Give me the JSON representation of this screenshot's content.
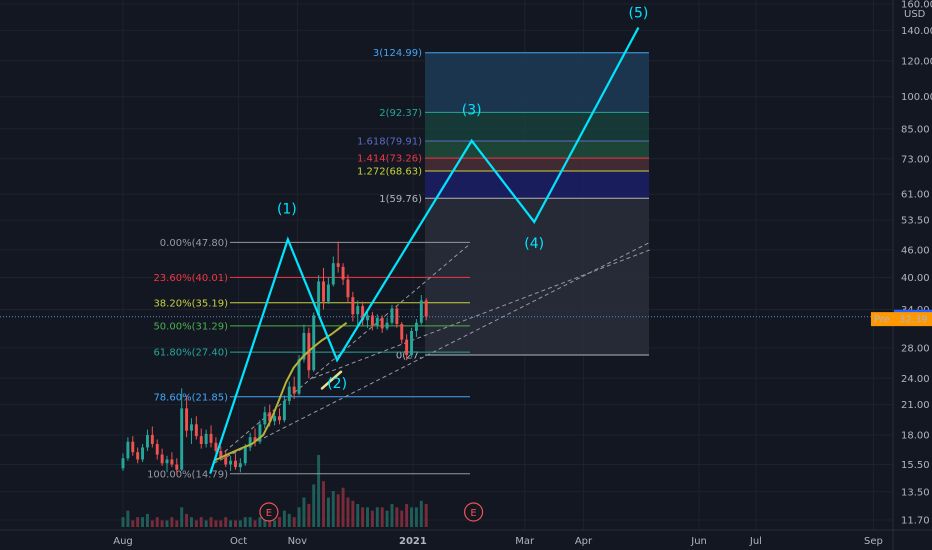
{
  "window": {
    "currency": "USD"
  },
  "colors": {
    "background": "#131722",
    "up": "#26a69a",
    "down": "#ef5350",
    "wave": "#00e5ff",
    "ma": "#b5b13a",
    "pre_badge": "#ff9800",
    "price_badge": "#2962ff"
  },
  "chart_data": {
    "type": "candlestick",
    "x_ticks": [
      "Aug",
      "Oct",
      "Nov",
      "2021",
      "Mar",
      "Apr",
      "Jun",
      "Jul",
      "Sep"
    ],
    "x_tick_days": [
      0,
      61,
      92,
      153,
      212,
      243,
      304,
      334,
      396
    ],
    "y_ticks": [
      11.7,
      13.5,
      15.5,
      18.0,
      21.0,
      24.0,
      28.0,
      34.0,
      40.0,
      46.0,
      53.5,
      61.0,
      73.0,
      85.0,
      100.0,
      120.0,
      140.0,
      160.0
    ],
    "y_tick_labels": [
      "11.70",
      "13.50",
      "15.50",
      "18.00",
      "21.00",
      "24.00",
      "28.00",
      "34.00",
      "40.00",
      "46.00",
      "53.50",
      "61.00",
      "73.00",
      "85.00",
      "100.00",
      "120.00",
      "140.00",
      "160.00"
    ],
    "y_scale": "log",
    "last_price": {
      "value": 32.79,
      "label": "32.79"
    },
    "pre_market": {
      "label": "Pre",
      "value": 32.39,
      "value_label": "32.39"
    },
    "fib_retracement": [
      {
        "label": "0.00%(47.80)",
        "value": 47.8,
        "color": "#9598a1"
      },
      {
        "label": "23.60%(40.01)",
        "value": 40.01,
        "color": "#f23645"
      },
      {
        "label": "38.20%(35.19)",
        "value": 35.19,
        "color": "#c7d13a"
      },
      {
        "label": "50.00%(31.29)",
        "value": 31.29,
        "color": "#4caf50"
      },
      {
        "label": "61.80%(27.40)",
        "value": 27.4,
        "color": "#26a69a"
      },
      {
        "label": "78.60%(21.85)",
        "value": 21.85,
        "color": "#42a5f5"
      },
      {
        "label": "100.00%(14.79)",
        "value": 14.79,
        "color": "#9598a1"
      }
    ],
    "fib_extension": [
      {
        "label": "3(124.99)",
        "value": 124.99,
        "color": "#42a5f5",
        "band": "#1c3b55"
      },
      {
        "label": "2(92.37)",
        "value": 92.37,
        "color": "#26a69a",
        "band": "#173f3b"
      },
      {
        "label": "1.618(79.91)",
        "value": 79.91,
        "color": "#5c6bc0",
        "band": "#1f4d3c"
      },
      {
        "label": "1.414(73.26)",
        "value": 73.26,
        "color": "#f23645",
        "band": "#4a2f36"
      },
      {
        "label": "1.272(68.63)",
        "value": 68.63,
        "color": "#c7d13a",
        "band": "#1c1f66"
      },
      {
        "label": "1(59.76)",
        "value": 59.76,
        "color": "#b2b5be",
        "band": "#2a2e39"
      },
      {
        "label": "0(27.",
        "value": 27.0,
        "color": "#b2b5be",
        "band": "#2a2e39"
      }
    ],
    "elliott_waves": [
      {
        "label": "(1)",
        "day": 87,
        "value": 48.5
      },
      {
        "label": "(2)",
        "day": 113,
        "value": 26.3
      },
      {
        "label": "(3)",
        "day": 184,
        "value": 80.0
      },
      {
        "label": "(4)",
        "day": 217,
        "value": 53.0
      },
      {
        "label": "(5)",
        "day": 272,
        "value": 142.0
      }
    ],
    "wave_start": {
      "day": 46,
      "value": 14.8
    },
    "events": [
      "E",
      "E"
    ],
    "event_days": [
      77,
      185
    ],
    "ohlc": [
      [
        15.2,
        16.4,
        15.0,
        16.0
      ],
      [
        16.0,
        17.8,
        15.8,
        17.4
      ],
      [
        17.4,
        17.9,
        16.2,
        16.5
      ],
      [
        16.5,
        16.9,
        15.6,
        15.9
      ],
      [
        15.9,
        17.2,
        15.7,
        16.9
      ],
      [
        16.9,
        18.5,
        16.6,
        18.0
      ],
      [
        18.0,
        18.8,
        16.9,
        17.2
      ],
      [
        17.2,
        17.6,
        15.9,
        16.3
      ],
      [
        16.3,
        16.8,
        15.4,
        15.6
      ],
      [
        15.6,
        16.2,
        14.9,
        15.9
      ],
      [
        15.9,
        16.5,
        15.3,
        15.5
      ],
      [
        15.5,
        16.0,
        14.8,
        15.1
      ],
      [
        15.1,
        22.8,
        15.0,
        20.6
      ],
      [
        20.6,
        22.0,
        17.8,
        18.4
      ],
      [
        18.4,
        19.6,
        17.2,
        19.0
      ],
      [
        19.0,
        19.8,
        17.6,
        17.9
      ],
      [
        17.9,
        18.6,
        16.8,
        17.2
      ],
      [
        17.2,
        18.5,
        16.9,
        18.1
      ],
      [
        18.1,
        18.9,
        16.9,
        17.3
      ],
      [
        17.3,
        17.8,
        16.2,
        16.6
      ],
      [
        16.6,
        17.0,
        15.8,
        16.1
      ],
      [
        16.1,
        16.6,
        15.3,
        15.5
      ],
      [
        15.5,
        16.2,
        15.0,
        15.8
      ],
      [
        15.8,
        16.4,
        15.1,
        15.3
      ],
      [
        15.3,
        16.0,
        14.9,
        15.6
      ],
      [
        15.6,
        17.2,
        15.4,
        16.9
      ],
      [
        16.9,
        18.2,
        16.6,
        17.8
      ],
      [
        17.8,
        18.6,
        17.0,
        17.4
      ],
      [
        17.4,
        19.4,
        17.2,
        19.0
      ],
      [
        19.0,
        20.8,
        18.6,
        20.2
      ],
      [
        20.2,
        21.0,
        18.8,
        19.3
      ],
      [
        19.3,
        20.2,
        18.9,
        19.8
      ],
      [
        19.8,
        20.6,
        19.0,
        19.4
      ],
      [
        19.4,
        22.0,
        19.2,
        21.4
      ],
      [
        21.4,
        23.6,
        21.0,
        23.0
      ],
      [
        23.0,
        24.2,
        21.6,
        22.2
      ],
      [
        22.2,
        27.0,
        22.0,
        26.4
      ],
      [
        26.4,
        31.5,
        26.0,
        30.2
      ],
      [
        30.2,
        31.0,
        24.0,
        25.0
      ],
      [
        25.0,
        33.5,
        24.8,
        33.0
      ],
      [
        33.0,
        40.5,
        32.6,
        39.2
      ],
      [
        39.2,
        42.0,
        34.0,
        35.4
      ],
      [
        35.4,
        40.0,
        35.0,
        38.6
      ],
      [
        38.6,
        44.5,
        38.2,
        43.0
      ],
      [
        43.0,
        48.0,
        41.0,
        42.2
      ],
      [
        42.2,
        43.0,
        38.5,
        39.6
      ],
      [
        39.6,
        40.6,
        35.2,
        36.2
      ],
      [
        36.2,
        37.2,
        32.0,
        33.2
      ],
      [
        33.2,
        35.6,
        31.0,
        34.6
      ],
      [
        34.6,
        35.4,
        31.4,
        32.2
      ],
      [
        32.2,
        33.8,
        31.0,
        33.0
      ],
      [
        33.0,
        33.6,
        30.6,
        31.4
      ],
      [
        31.4,
        33.2,
        30.8,
        32.6
      ],
      [
        32.6,
        33.0,
        30.2,
        30.9
      ],
      [
        30.9,
        32.6,
        30.6,
        31.8
      ],
      [
        31.8,
        34.8,
        31.5,
        34.2
      ],
      [
        34.2,
        34.6,
        31.0,
        31.6
      ],
      [
        31.6,
        31.9,
        28.6,
        29.2
      ],
      [
        29.2,
        30.0,
        26.3,
        27.0
      ],
      [
        27.0,
        31.0,
        26.7,
        30.5
      ],
      [
        30.5,
        32.4,
        29.6,
        31.8
      ],
      [
        31.8,
        36.6,
        31.5,
        35.6
      ],
      [
        35.6,
        36.0,
        32.2,
        32.8
      ]
    ],
    "volume": [
      3,
      5,
      2,
      3,
      3,
      4,
      2,
      3,
      2,
      2,
      3,
      2,
      6,
      4,
      3,
      2,
      3,
      2,
      3,
      2,
      2,
      3,
      2,
      2,
      2,
      3,
      3,
      2,
      3,
      4,
      3,
      2,
      3,
      5,
      4,
      3,
      6,
      9,
      7,
      13,
      22,
      14,
      9,
      11,
      10,
      12,
      9,
      8,
      7,
      6,
      6,
      5,
      6,
      6,
      5,
      7,
      6,
      5,
      7,
      6,
      6,
      8,
      7
    ],
    "moving_average": [
      [
        48,
        15.8
      ],
      [
        55,
        16.3
      ],
      [
        62,
        16.8
      ],
      [
        68,
        17.2
      ],
      [
        74,
        18.0
      ],
      [
        78,
        19.4
      ],
      [
        82,
        21.3
      ],
      [
        86,
        23.5
      ],
      [
        90,
        25.3
      ],
      [
        95,
        26.8
      ],
      [
        100,
        28.0
      ],
      [
        105,
        29.1
      ],
      [
        110,
        30.0
      ],
      [
        114,
        30.9
      ],
      [
        118,
        31.8
      ]
    ],
    "support_segment": [
      [
        105,
        22.8
      ],
      [
        115,
        24.8
      ]
    ]
  }
}
